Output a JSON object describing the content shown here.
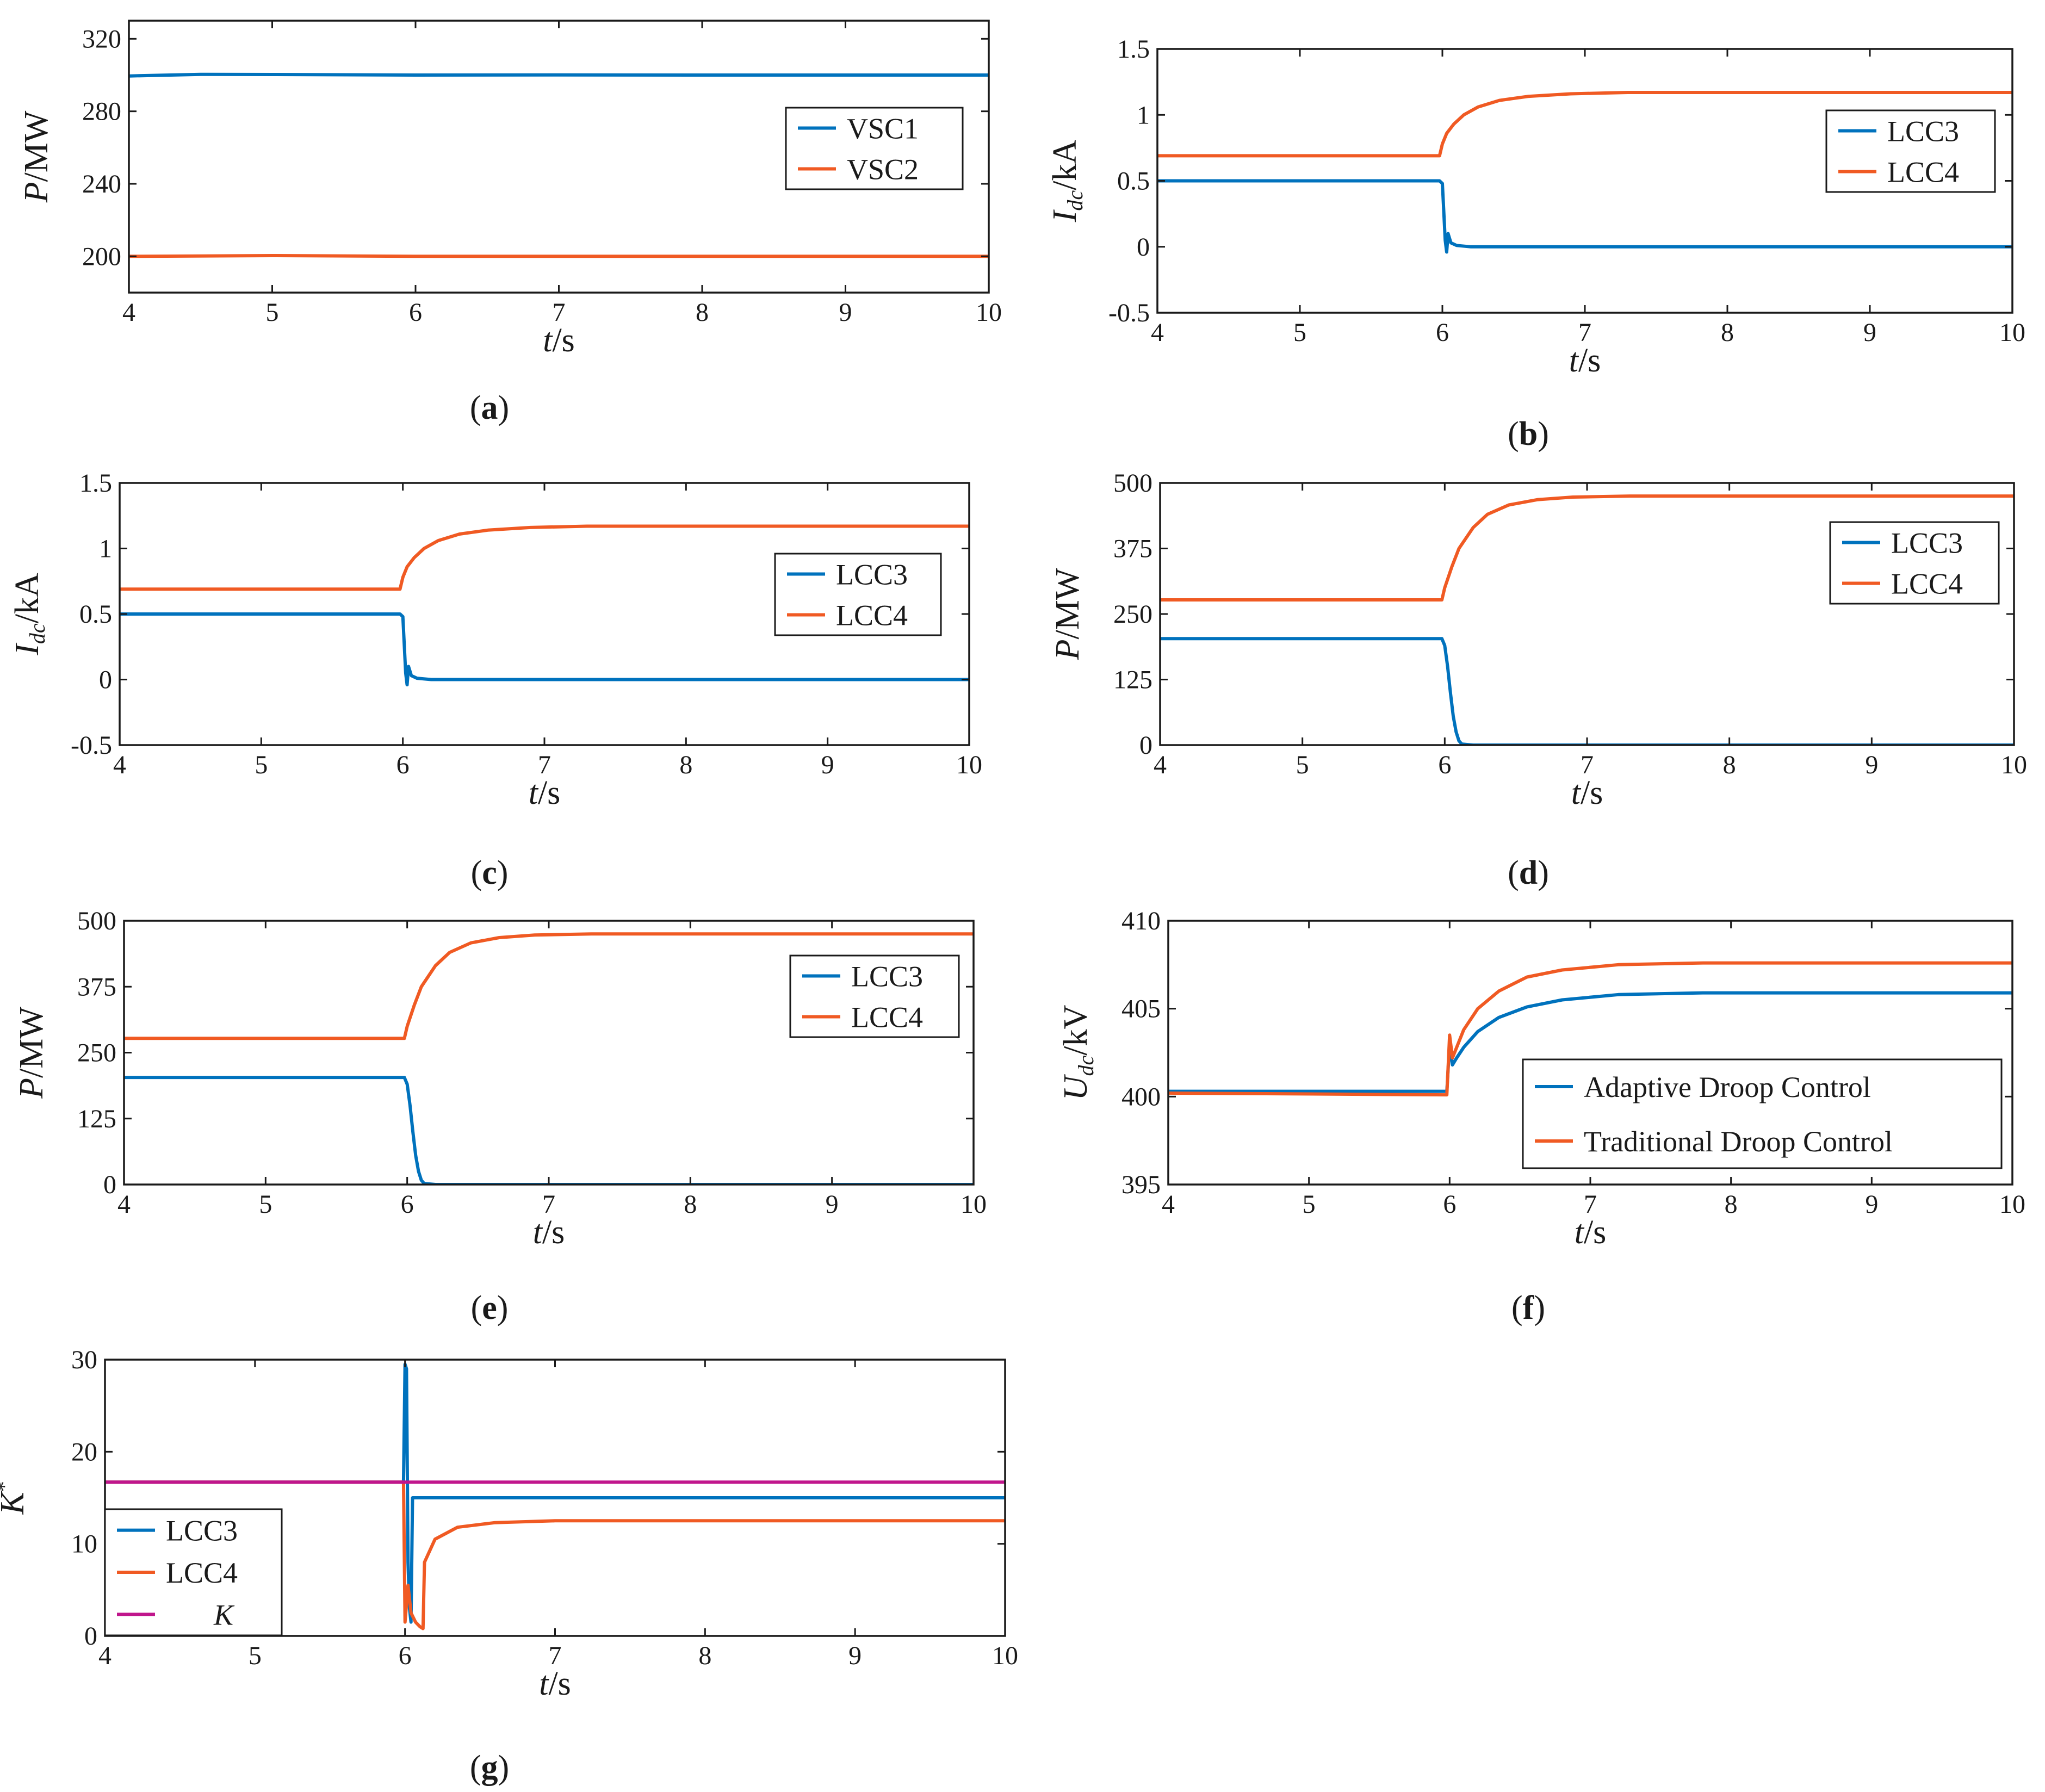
{
  "colors": {
    "blue": "#0072BD",
    "orange": "#F05A23",
    "magenta": "#C0168C"
  },
  "chart_data": [
    {
      "id": "a",
      "type": "line",
      "caption": "a",
      "xlabel": {
        "italic": "t",
        "rest": "/s"
      },
      "ylabel": {
        "italic": "P",
        "sub": "",
        "rest": "/MW"
      },
      "xlim": [
        4,
        10
      ],
      "ylim": [
        180,
        330
      ],
      "xticks": [
        4,
        5,
        6,
        7,
        8,
        9,
        10
      ],
      "yticks": [
        200,
        240,
        280,
        320
      ],
      "ytick_labels": [
        "200",
        "240",
        "280",
        "320"
      ],
      "legend_position": "right-middle",
      "series": [
        {
          "name": "VSC1",
          "color": "#0072BD",
          "points": [
            [
              4,
              299.5
            ],
            [
              4.5,
              300.4
            ],
            [
              5,
              300.3
            ],
            [
              6,
              300.0
            ],
            [
              7,
              300.1
            ],
            [
              8,
              300.0
            ],
            [
              9,
              300.0
            ],
            [
              10,
              300.0
            ]
          ]
        },
        {
          "name": "VSC2",
          "color": "#F05A23",
          "points": [
            [
              4,
              200.0
            ],
            [
              5,
              200.4
            ],
            [
              6,
              200.0
            ],
            [
              7,
              200.0
            ],
            [
              8,
              200.0
            ],
            [
              9,
              200.0
            ],
            [
              10,
              200.0
            ]
          ]
        }
      ]
    },
    {
      "id": "b",
      "type": "line",
      "caption": "b",
      "xlabel": {
        "italic": "t",
        "rest": "/s"
      },
      "ylabel": {
        "italic": "I",
        "sub": "dc",
        "rest": "/kA"
      },
      "xlim": [
        4,
        10
      ],
      "ylim": [
        -0.5,
        1.5
      ],
      "xticks": [
        4,
        5,
        6,
        7,
        8,
        9,
        10
      ],
      "yticks": [
        -0.5,
        0,
        0.5,
        1,
        1.5
      ],
      "ytick_labels": [
        "-0.5",
        "0",
        "0.5",
        "1",
        "1.5"
      ],
      "legend_position": "top-right",
      "series": [
        {
          "name": "LCC3",
          "color": "#0072BD",
          "points": [
            [
              4,
              0.5
            ],
            [
              5.98,
              0.5
            ],
            [
              6.0,
              0.48
            ],
            [
              6.02,
              0.05
            ],
            [
              6.03,
              -0.04
            ],
            [
              6.04,
              0.1
            ],
            [
              6.06,
              0.03
            ],
            [
              6.1,
              0.01
            ],
            [
              6.2,
              0.0
            ],
            [
              10,
              0.0
            ]
          ]
        },
        {
          "name": "LCC4",
          "color": "#F05A23",
          "points": [
            [
              4,
              0.69
            ],
            [
              5.98,
              0.69
            ],
            [
              6.0,
              0.78
            ],
            [
              6.03,
              0.86
            ],
            [
              6.08,
              0.93
            ],
            [
              6.15,
              1.0
            ],
            [
              6.25,
              1.06
            ],
            [
              6.4,
              1.11
            ],
            [
              6.6,
              1.14
            ],
            [
              6.9,
              1.16
            ],
            [
              7.3,
              1.17
            ],
            [
              8,
              1.17
            ],
            [
              10,
              1.17
            ]
          ]
        }
      ]
    },
    {
      "id": "c",
      "type": "line",
      "caption": "c",
      "xlabel": {
        "italic": "t",
        "rest": "/s"
      },
      "ylabel": {
        "italic": "I",
        "sub": "dc",
        "rest": "/kA"
      },
      "xlim": [
        4,
        10
      ],
      "ylim": [
        -0.5,
        1.5
      ],
      "xticks": [
        4,
        5,
        6,
        7,
        8,
        9,
        10
      ],
      "yticks": [
        -0.5,
        0,
        0.5,
        1,
        1.5
      ],
      "ytick_labels": [
        "-0.5",
        "0",
        "0.5",
        "1",
        "1.5"
      ],
      "legend_position": "right-middle",
      "series": [
        {
          "name": "LCC3",
          "color": "#0072BD",
          "points": [
            [
              4,
              0.5
            ],
            [
              5.98,
              0.5
            ],
            [
              6.0,
              0.48
            ],
            [
              6.02,
              0.05
            ],
            [
              6.03,
              -0.04
            ],
            [
              6.04,
              0.1
            ],
            [
              6.06,
              0.03
            ],
            [
              6.1,
              0.01
            ],
            [
              6.2,
              0.0
            ],
            [
              10,
              0.0
            ]
          ]
        },
        {
          "name": "LCC4",
          "color": "#F05A23",
          "points": [
            [
              4,
              0.69
            ],
            [
              5.98,
              0.69
            ],
            [
              6.0,
              0.78
            ],
            [
              6.03,
              0.86
            ],
            [
              6.08,
              0.93
            ],
            [
              6.15,
              1.0
            ],
            [
              6.25,
              1.06
            ],
            [
              6.4,
              1.11
            ],
            [
              6.6,
              1.14
            ],
            [
              6.9,
              1.16
            ],
            [
              7.3,
              1.17
            ],
            [
              8,
              1.17
            ],
            [
              10,
              1.17
            ]
          ]
        }
      ]
    },
    {
      "id": "d",
      "type": "line",
      "caption": "d",
      "xlabel": {
        "italic": "t",
        "rest": "/s"
      },
      "ylabel": {
        "italic": "P",
        "sub": "",
        "rest": "/MW"
      },
      "xlim": [
        4,
        10
      ],
      "ylim": [
        0,
        500
      ],
      "xticks": [
        4,
        5,
        6,
        7,
        8,
        9,
        10
      ],
      "yticks": [
        0,
        125,
        250,
        375,
        500
      ],
      "ytick_labels": [
        "0",
        "125",
        "250",
        "375",
        "500"
      ],
      "legend_position": "top-right",
      "series": [
        {
          "name": "LCC3",
          "color": "#0072BD",
          "points": [
            [
              4,
              203
            ],
            [
              5.98,
              203
            ],
            [
              6.0,
              190
            ],
            [
              6.02,
              150
            ],
            [
              6.04,
              100
            ],
            [
              6.06,
              55
            ],
            [
              6.08,
              25
            ],
            [
              6.1,
              8
            ],
            [
              6.12,
              2
            ],
            [
              6.2,
              0
            ],
            [
              10,
              0
            ]
          ]
        },
        {
          "name": "LCC4",
          "color": "#F05A23",
          "points": [
            [
              4,
              277
            ],
            [
              5.98,
              277
            ],
            [
              6.0,
              300
            ],
            [
              6.05,
              340
            ],
            [
              6.1,
              375
            ],
            [
              6.2,
              415
            ],
            [
              6.3,
              440
            ],
            [
              6.45,
              458
            ],
            [
              6.65,
              468
            ],
            [
              6.9,
              473
            ],
            [
              7.3,
              475
            ],
            [
              10,
              475
            ]
          ]
        }
      ]
    },
    {
      "id": "e",
      "type": "line",
      "caption": "e",
      "xlabel": {
        "italic": "t",
        "rest": "/s"
      },
      "ylabel": {
        "italic": "P",
        "sub": "",
        "rest": "/MW"
      },
      "xlim": [
        4,
        10
      ],
      "ylim": [
        0,
        500
      ],
      "xticks": [
        4,
        5,
        6,
        7,
        8,
        9,
        10
      ],
      "yticks": [
        0,
        125,
        250,
        375,
        500
      ],
      "ytick_labels": [
        "0",
        "125",
        "250",
        "375",
        "500"
      ],
      "legend_position": "top-right",
      "series": [
        {
          "name": "LCC3",
          "color": "#0072BD",
          "points": [
            [
              4,
              203
            ],
            [
              5.98,
              203
            ],
            [
              6.0,
              190
            ],
            [
              6.02,
              150
            ],
            [
              6.04,
              100
            ],
            [
              6.06,
              55
            ],
            [
              6.08,
              25
            ],
            [
              6.1,
              8
            ],
            [
              6.12,
              2
            ],
            [
              6.2,
              0
            ],
            [
              10,
              0
            ]
          ]
        },
        {
          "name": "LCC4",
          "color": "#F05A23",
          "points": [
            [
              4,
              277
            ],
            [
              5.98,
              277
            ],
            [
              6.0,
              300
            ],
            [
              6.05,
              340
            ],
            [
              6.1,
              375
            ],
            [
              6.2,
              415
            ],
            [
              6.3,
              440
            ],
            [
              6.45,
              458
            ],
            [
              6.65,
              468
            ],
            [
              6.9,
              473
            ],
            [
              7.3,
              475
            ],
            [
              10,
              475
            ]
          ]
        }
      ]
    },
    {
      "id": "f",
      "type": "line",
      "caption": "f",
      "xlabel": {
        "italic": "t",
        "rest": "/s"
      },
      "ylabel": {
        "italic": "U",
        "sub": "dc",
        "rest": "/kV"
      },
      "xlim": [
        4,
        10
      ],
      "ylim": [
        395,
        410
      ],
      "xticks": [
        4,
        5,
        6,
        7,
        8,
        9,
        10
      ],
      "yticks": [
        395,
        400,
        405,
        410
      ],
      "ytick_labels": [
        "395",
        "400",
        "405",
        "410"
      ],
      "legend_position": "bottom-right",
      "series": [
        {
          "name": "Adaptive Droop Control",
          "color": "#0072BD",
          "points": [
            [
              4,
              400.3
            ],
            [
              5.98,
              400.3
            ],
            [
              6.0,
              403.0
            ],
            [
              6.02,
              401.8
            ],
            [
              6.05,
              402.2
            ],
            [
              6.1,
              402.8
            ],
            [
              6.2,
              403.7
            ],
            [
              6.35,
              404.5
            ],
            [
              6.55,
              405.1
            ],
            [
              6.8,
              405.5
            ],
            [
              7.2,
              405.8
            ],
            [
              7.8,
              405.9
            ],
            [
              10,
              405.9
            ]
          ]
        },
        {
          "name": "Traditional Droop Control",
          "color": "#F05A23",
          "points": [
            [
              4,
              400.2
            ],
            [
              5.98,
              400.1
            ],
            [
              6.0,
              403.5
            ],
            [
              6.02,
              402.2
            ],
            [
              6.05,
              402.8
            ],
            [
              6.1,
              403.8
            ],
            [
              6.2,
              405.0
            ],
            [
              6.35,
              406.0
            ],
            [
              6.55,
              406.8
            ],
            [
              6.8,
              407.2
            ],
            [
              7.2,
              407.5
            ],
            [
              7.8,
              407.6
            ],
            [
              10,
              407.6
            ]
          ]
        }
      ]
    },
    {
      "id": "g",
      "type": "line",
      "caption": "g",
      "xlabel": {
        "italic": "t",
        "rest": "/s"
      },
      "ylabel": {
        "italic": "K",
        "sub": "",
        "rest": "",
        "sup": "*"
      },
      "xlim": [
        4,
        10
      ],
      "ylim": [
        0,
        30
      ],
      "xticks": [
        4,
        5,
        6,
        7,
        8,
        9,
        10
      ],
      "yticks": [
        0,
        10,
        20,
        30
      ],
      "ytick_labels": [
        "0",
        "10",
        "20",
        "30"
      ],
      "legend_position": "bottom-left",
      "series": [
        {
          "name": "LCC3",
          "color": "#0072BD",
          "points": [
            [
              4,
              16.7
            ],
            [
              5.99,
              16.7
            ],
            [
              6.0,
              29.5
            ],
            [
              6.01,
              29.0
            ],
            [
              6.02,
              8.0
            ],
            [
              6.03,
              3.0
            ],
            [
              6.04,
              1.5
            ],
            [
              6.05,
              15.0
            ],
            [
              10,
              15.0
            ]
          ]
        },
        {
          "name": "LCC4",
          "color": "#F05A23",
          "points": [
            [
              4,
              16.7
            ],
            [
              5.99,
              16.7
            ],
            [
              6.0,
              1.5
            ],
            [
              6.02,
              5.5
            ],
            [
              6.04,
              2.5
            ],
            [
              6.07,
              1.5
            ],
            [
              6.1,
              1.0
            ],
            [
              6.12,
              0.8
            ],
            [
              6.13,
              8.0
            ],
            [
              6.2,
              10.5
            ],
            [
              6.35,
              11.8
            ],
            [
              6.6,
              12.3
            ],
            [
              7.0,
              12.5
            ],
            [
              10,
              12.5
            ]
          ]
        },
        {
          "name": "K",
          "legend_italic": true,
          "color": "#C0168C",
          "points": [
            [
              4,
              16.7
            ],
            [
              10,
              16.7
            ]
          ]
        }
      ]
    }
  ]
}
